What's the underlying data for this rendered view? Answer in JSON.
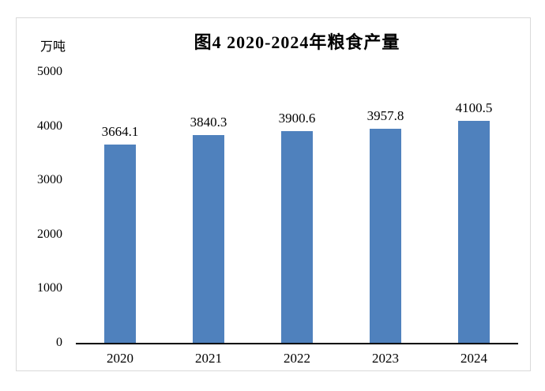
{
  "chart_data": {
    "type": "bar",
    "title": "图4 2020-2024年粮食产量",
    "ylabel": "万吨",
    "xlabel": "",
    "categories": [
      "2020",
      "2021",
      "2022",
      "2023",
      "2024"
    ],
    "values": [
      3664.1,
      3840.3,
      3900.6,
      3957.8,
      4100.5
    ],
    "data_labels": [
      "3664.1",
      "3840.3",
      "3900.6",
      "3957.8",
      "4100.5"
    ],
    "ylim": [
      0,
      5000
    ],
    "ytick_step": 1000,
    "ytick_labels": [
      "0",
      "1000",
      "2000",
      "3000",
      "4000",
      "5000"
    ],
    "grid": false,
    "legend": "none",
    "bar_color": "#4F81BD",
    "frame_border_color": "#D9D9D9",
    "axis_color": "#000000"
  }
}
